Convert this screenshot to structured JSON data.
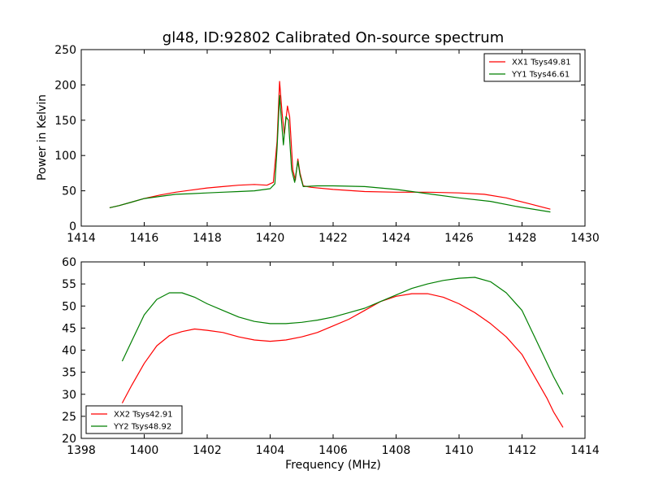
{
  "chart_data": [
    {
      "type": "line",
      "title": "gl48, ID:92802 Calibrated On-source spectrum",
      "xlabel": "",
      "ylabel": "Power in Kelvin",
      "xlim": [
        1414,
        1430
      ],
      "ylim": [
        0,
        250
      ],
      "xticks": [
        1414,
        1416,
        1418,
        1420,
        1422,
        1424,
        1426,
        1428,
        1430
      ],
      "yticks": [
        0,
        50,
        100,
        150,
        200,
        250
      ],
      "grid": false,
      "legend_position": "top-right",
      "series": [
        {
          "name": "XX1 Tsys49.81",
          "color": "#ff0000",
          "points": [
            [
              1414.9,
              26
            ],
            [
              1415.2,
              29
            ],
            [
              1415.6,
              34
            ],
            [
              1416.0,
              39
            ],
            [
              1416.5,
              44
            ],
            [
              1417.0,
              48
            ],
            [
              1417.5,
              51
            ],
            [
              1418.0,
              54
            ],
            [
              1418.5,
              56
            ],
            [
              1419.0,
              58
            ],
            [
              1419.5,
              59
            ],
            [
              1419.9,
              58
            ],
            [
              1420.1,
              62
            ],
            [
              1420.22,
              120
            ],
            [
              1420.3,
              205
            ],
            [
              1420.38,
              160
            ],
            [
              1420.45,
              130
            ],
            [
              1420.55,
              170
            ],
            [
              1420.62,
              155
            ],
            [
              1420.72,
              80
            ],
            [
              1420.8,
              65
            ],
            [
              1420.88,
              95
            ],
            [
              1420.95,
              75
            ],
            [
              1421.05,
              57
            ],
            [
              1421.3,
              55
            ],
            [
              1422.0,
              52
            ],
            [
              1423.0,
              49
            ],
            [
              1424.0,
              48
            ],
            [
              1425.0,
              48
            ],
            [
              1426.0,
              47
            ],
            [
              1426.8,
              45
            ],
            [
              1427.5,
              40
            ],
            [
              1428.2,
              32
            ],
            [
              1428.9,
              24
            ]
          ]
        },
        {
          "name": "YY1 Tsys46.61",
          "color": "#007f00",
          "points": [
            [
              1414.9,
              26
            ],
            [
              1415.2,
              29
            ],
            [
              1415.6,
              34
            ],
            [
              1416.0,
              39
            ],
            [
              1416.5,
              42
            ],
            [
              1417.0,
              45
            ],
            [
              1417.5,
              46
            ],
            [
              1418.0,
              47
            ],
            [
              1418.5,
              48
            ],
            [
              1419.0,
              49
            ],
            [
              1419.5,
              50
            ],
            [
              1420.0,
              53
            ],
            [
              1420.15,
              60
            ],
            [
              1420.22,
              110
            ],
            [
              1420.3,
              185
            ],
            [
              1420.36,
              150
            ],
            [
              1420.42,
              115
            ],
            [
              1420.5,
              155
            ],
            [
              1420.58,
              150
            ],
            [
              1420.68,
              80
            ],
            [
              1420.78,
              62
            ],
            [
              1420.88,
              92
            ],
            [
              1420.95,
              72
            ],
            [
              1421.05,
              56
            ],
            [
              1421.5,
              57
            ],
            [
              1422.0,
              57
            ],
            [
              1423.0,
              56
            ],
            [
              1424.0,
              52
            ],
            [
              1425.0,
              46
            ],
            [
              1426.0,
              40
            ],
            [
              1427.0,
              35
            ],
            [
              1427.8,
              28
            ],
            [
              1428.9,
              20
            ]
          ]
        }
      ]
    },
    {
      "type": "line",
      "title": "",
      "xlabel": "Frequency (MHz)",
      "ylabel": "",
      "xlim": [
        1398,
        1414
      ],
      "ylim": [
        20,
        60
      ],
      "xticks": [
        1398,
        1400,
        1402,
        1404,
        1406,
        1408,
        1410,
        1412,
        1414
      ],
      "yticks": [
        20,
        25,
        30,
        35,
        40,
        45,
        50,
        55,
        60
      ],
      "grid": false,
      "legend_position": "bottom-left",
      "series": [
        {
          "name": "XX2 Tsys42.91",
          "color": "#ff0000",
          "points": [
            [
              1399.3,
              28
            ],
            [
              1399.6,
              32
            ],
            [
              1400.0,
              37
            ],
            [
              1400.4,
              41
            ],
            [
              1400.8,
              43.3
            ],
            [
              1401.2,
              44.2
            ],
            [
              1401.6,
              44.8
            ],
            [
              1402.0,
              44.5
            ],
            [
              1402.5,
              44
            ],
            [
              1403.0,
              43
            ],
            [
              1403.5,
              42.3
            ],
            [
              1404.0,
              42
            ],
            [
              1404.5,
              42.3
            ],
            [
              1405.0,
              43
            ],
            [
              1405.5,
              44
            ],
            [
              1406.0,
              45.5
            ],
            [
              1406.5,
              47
            ],
            [
              1407.0,
              49
            ],
            [
              1407.5,
              51
            ],
            [
              1408.0,
              52.2
            ],
            [
              1408.5,
              52.8
            ],
            [
              1409.0,
              52.8
            ],
            [
              1409.5,
              52
            ],
            [
              1410.0,
              50.5
            ],
            [
              1410.5,
              48.5
            ],
            [
              1411.0,
              46
            ],
            [
              1411.5,
              43
            ],
            [
              1412.0,
              39
            ],
            [
              1412.4,
              34
            ],
            [
              1412.8,
              29
            ],
            [
              1413.0,
              26
            ],
            [
              1413.3,
              22.5
            ]
          ]
        },
        {
          "name": "YY2 Tsys48.92",
          "color": "#007f00",
          "points": [
            [
              1399.3,
              37.5
            ],
            [
              1399.6,
              42
            ],
            [
              1400.0,
              48
            ],
            [
              1400.4,
              51.5
            ],
            [
              1400.8,
              53
            ],
            [
              1401.2,
              53
            ],
            [
              1401.6,
              52
            ],
            [
              1402.0,
              50.5
            ],
            [
              1402.5,
              49
            ],
            [
              1403.0,
              47.5
            ],
            [
              1403.5,
              46.5
            ],
            [
              1404.0,
              46
            ],
            [
              1404.5,
              46
            ],
            [
              1405.0,
              46.3
            ],
            [
              1405.5,
              46.8
            ],
            [
              1406.0,
              47.5
            ],
            [
              1406.5,
              48.5
            ],
            [
              1407.0,
              49.5
            ],
            [
              1407.5,
              51
            ],
            [
              1408.0,
              52.5
            ],
            [
              1408.5,
              54
            ],
            [
              1409.0,
              55
            ],
            [
              1409.5,
              55.8
            ],
            [
              1410.0,
              56.3
            ],
            [
              1410.5,
              56.5
            ],
            [
              1411.0,
              55.5
            ],
            [
              1411.5,
              53
            ],
            [
              1412.0,
              49
            ],
            [
              1412.4,
              43
            ],
            [
              1412.8,
              37
            ],
            [
              1413.0,
              34
            ],
            [
              1413.3,
              30
            ]
          ]
        }
      ]
    }
  ]
}
